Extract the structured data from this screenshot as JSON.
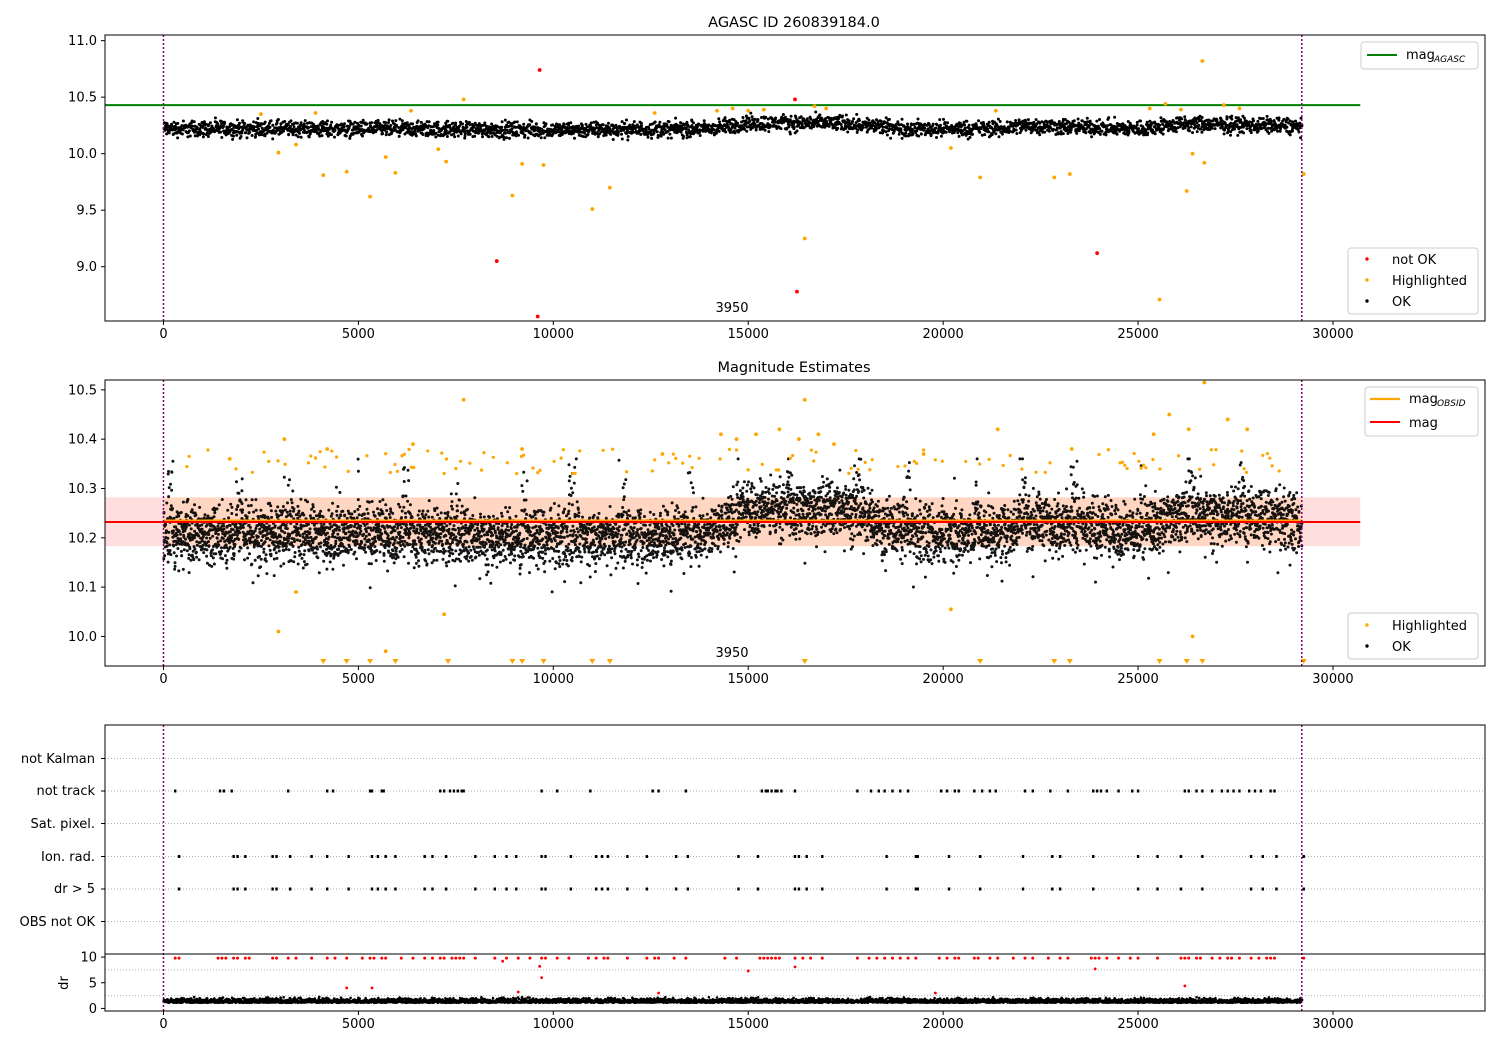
{
  "chart_data": [
    {
      "type": "scatter",
      "title": "AGASC ID 260839184.0",
      "xlim": [
        -1500,
        33900
      ],
      "ylim": [
        8.52,
        11.05
      ],
      "xticks": [
        0,
        5000,
        10000,
        15000,
        20000,
        25000,
        30000
      ],
      "yticks": [
        9.0,
        9.5,
        10.0,
        10.5,
        11.0
      ],
      "ytick_labels": [
        "9.0",
        "9.5",
        "10.0",
        "10.5",
        "11.0"
      ],
      "annotation": {
        "text": "3950",
        "x": 14570,
        "y": 8.63
      },
      "vlines": [
        0,
        29200
      ],
      "hlines": [
        {
          "name": "mag_AGASC",
          "y": 10.43,
          "x_end": 30700,
          "color": "#008000"
        }
      ],
      "ok_band": {
        "x_start": 0,
        "x_end": 29200,
        "baseline_segments": [
          [
            0,
            10.22
          ],
          [
            5000,
            10.22
          ],
          [
            10000,
            10.21
          ],
          [
            14000,
            10.22
          ],
          [
            15000,
            10.27
          ],
          [
            17500,
            10.27
          ],
          [
            19000,
            10.22
          ],
          [
            21500,
            10.22
          ],
          [
            22000,
            10.25
          ],
          [
            25000,
            10.22
          ],
          [
            26000,
            10.26
          ],
          [
            28500,
            10.25
          ],
          [
            29200,
            10.24
          ]
        ],
        "half_width": 0.06
      },
      "series": [
        {
          "name": "not OK",
          "color": "#ff0000",
          "x": [
            9650,
            8550,
            9600,
            16200,
            16250,
            23950
          ],
          "y": [
            10.74,
            9.05,
            8.56,
            10.48,
            8.78,
            9.12
          ]
        },
        {
          "name": "Highlighted",
          "color": "#ffa500",
          "x": [
            2950,
            3400,
            4100,
            4700,
            5300,
            5700,
            5950,
            7050,
            7250,
            7700,
            8950,
            9200,
            9750,
            11000,
            11450,
            16450,
            20200,
            20950,
            22850,
            23250,
            25550,
            26250,
            26400,
            26700,
            26650,
            29250,
            14200,
            14600,
            15000,
            15400,
            16700,
            17000,
            21350,
            25300,
            25700,
            26100,
            27200,
            27600,
            12600,
            6350,
            3900,
            2500
          ],
          "y": [
            10.01,
            10.08,
            9.81,
            9.84,
            9.62,
            9.97,
            9.83,
            10.04,
            9.93,
            10.48,
            9.63,
            9.91,
            9.9,
            9.51,
            9.7,
            9.25,
            10.05,
            9.79,
            9.79,
            9.82,
            8.71,
            9.67,
            10.0,
            9.92,
            10.82,
            9.82,
            10.38,
            10.4,
            10.38,
            10.39,
            10.42,
            10.4,
            10.38,
            10.4,
            10.44,
            10.39,
            10.43,
            10.4,
            10.36,
            10.38,
            10.36,
            10.35
          ]
        },
        {
          "name": "OK",
          "color": "#000000",
          "x": [],
          "y": []
        }
      ],
      "legend_top": [
        {
          "label": "mag",
          "sub": "AGASC",
          "color": "#008000"
        }
      ],
      "legend_bottom": [
        {
          "label": "not OK",
          "color": "#ff0000"
        },
        {
          "label": "Highlighted",
          "color": "#ffa500"
        },
        {
          "label": "OK",
          "color": "#000000"
        }
      ],
      "legend_placement": "top-right / lower-right"
    },
    {
      "type": "scatter",
      "title": "Magnitude Estimates",
      "xlim": [
        -1500,
        33900
      ],
      "ylim": [
        9.94,
        10.52
      ],
      "xticks": [
        0,
        5000,
        10000,
        15000,
        20000,
        25000,
        30000
      ],
      "yticks": [
        10.0,
        10.1,
        10.2,
        10.3,
        10.4,
        10.5
      ],
      "ytick_labels": [
        "10.0",
        "10.1",
        "10.2",
        "10.3",
        "10.4",
        "10.5"
      ],
      "annotation": {
        "text": "3950",
        "x": 14570,
        "y": 9.96
      },
      "vlines": [
        0,
        29200
      ],
      "hlines": [
        {
          "name": "mag_OBSID",
          "y": 10.235,
          "x_start": 0,
          "x_end": 29200,
          "color": "#ffa500"
        },
        {
          "name": "mag",
          "y": 10.232,
          "x_start": -1500,
          "x_end": 30700,
          "color": "#ff0000"
        }
      ],
      "mag_band": {
        "y_low": 10.183,
        "y_high": 10.282,
        "x_start": -1500,
        "x_end": 30700
      },
      "series": [
        {
          "name": "Highlighted",
          "color": "#ffa500",
          "x": [
            2950,
            3400,
            5700,
            7200,
            7700,
            16450,
            20200,
            26400,
            26700,
            14300,
            14700,
            15200,
            15800,
            16300,
            16800,
            17200,
            21400,
            25400,
            25800,
            26300,
            27300,
            27800,
            12800,
            6400,
            4200,
            3100,
            1700,
            19500,
            23300,
            9200
          ],
          "y": [
            10.01,
            10.09,
            9.97,
            10.045,
            10.48,
            10.48,
            10.055,
            10.0,
            10.515,
            10.41,
            10.4,
            10.41,
            10.42,
            10.4,
            10.41,
            10.39,
            10.42,
            10.41,
            10.45,
            10.42,
            10.44,
            10.42,
            10.37,
            10.39,
            10.38,
            10.4,
            10.36,
            10.37,
            10.38,
            10.38
          ]
        },
        {
          "name": "OK",
          "color": "#000000",
          "x": [],
          "y": []
        }
      ],
      "low_markers_x": [
        4100,
        4700,
        5300,
        5950,
        7300,
        8950,
        9200,
        9750,
        11000,
        11450,
        16450,
        20950,
        22850,
        23250,
        25550,
        26250,
        26650,
        29250
      ],
      "legend_top": [
        {
          "label": "mag",
          "sub": "OBSID",
          "color": "#ffa500"
        },
        {
          "label": "mag",
          "sub": "",
          "color": "#ff0000"
        }
      ],
      "legend_bottom": [
        {
          "label": "Highlighted",
          "color": "#ffa500"
        },
        {
          "label": "OK",
          "color": "#000000"
        }
      ]
    },
    {
      "type": "scatter",
      "title": "",
      "xlim": [
        -1500,
        33900
      ],
      "categories": [
        "not Kalman",
        "not track",
        "Sat. pixel.",
        "Ion. rad.",
        "dr > 5",
        "OBS not OK"
      ],
      "vlines": [
        0,
        29200
      ],
      "flags": {
        "not track": [
          300,
          1450,
          1550,
          1750,
          3200,
          4200,
          4350,
          5300,
          5350,
          5600,
          5650,
          7100,
          7200,
          7350,
          7450,
          7550,
          7650,
          7700,
          9700,
          10100,
          10950,
          12550,
          12700,
          13400,
          15350,
          15450,
          15500,
          15600,
          15700,
          15750,
          15850,
          16200,
          17800,
          18150,
          18350,
          18500,
          18700,
          18900,
          19100,
          19950,
          20100,
          20300,
          20400,
          20800,
          21000,
          21200,
          21350,
          22100,
          22300,
          22750,
          23200,
          23850,
          23950,
          24050,
          24200,
          24500,
          24850,
          25000,
          26200,
          26300,
          26500,
          26650,
          26900,
          27150,
          27300,
          27450,
          27600,
          27850,
          28000,
          28150,
          28400,
          28500
        ],
        "Ion. rad.": [
          400,
          1800,
          1900,
          2100,
          2800,
          2900,
          3250,
          3800,
          4200,
          4750,
          5350,
          5500,
          5700,
          5950,
          6700,
          6900,
          7250,
          8000,
          8500,
          8800,
          9050,
          9700,
          9800,
          10450,
          11100,
          11250,
          11400,
          11900,
          12400,
          13150,
          13450,
          14750,
          15250,
          16200,
          16300,
          16500,
          16900,
          18550,
          19300,
          19350,
          20150,
          20950,
          22050,
          22800,
          23000,
          23850,
          25000,
          25500,
          26100,
          26650,
          27900,
          28200,
          28550,
          29250
        ],
        "dr > 5": [
          400,
          1800,
          1900,
          2100,
          2800,
          2900,
          3250,
          3800,
          4200,
          4750,
          5350,
          5500,
          5700,
          5950,
          6700,
          6900,
          7250,
          8000,
          8500,
          8800,
          9050,
          9700,
          9800,
          10450,
          11100,
          11250,
          11400,
          11900,
          12400,
          13150,
          13450,
          14750,
          15250,
          16200,
          16300,
          16500,
          16900,
          18550,
          19300,
          19350,
          20150,
          20950,
          22050,
          22800,
          23000,
          23850,
          25000,
          25500,
          26100,
          26650,
          27900,
          28200,
          28550,
          29250
        ]
      },
      "dr_panel": {
        "ylabel": "dr",
        "ylim": [
          -0.5,
          10.6
        ],
        "yticks": [
          0,
          5,
          10
        ],
        "ytick_labels": [
          "0",
          "5",
          "10"
        ],
        "baseline": 1.3,
        "outliers_x": [
          9100,
          9650,
          9700,
          15000,
          16200,
          23900,
          26200,
          12700,
          4700,
          5350,
          8700,
          19800
        ],
        "outliers_y": [
          3.2,
          8.2,
          6.0,
          7.3,
          8.1,
          7.7,
          4.4,
          3.0,
          4.0,
          4.0,
          9.2,
          3.0
        ],
        "top_cluster_y": 9.8,
        "top_cluster_x": [
          300,
          400,
          1400,
          1500,
          1600,
          1800,
          1900,
          2100,
          2200,
          2800,
          2900,
          3200,
          3400,
          3800,
          4200,
          4400,
          4700,
          5100,
          5300,
          5400,
          5600,
          5700,
          6100,
          6400,
          6700,
          6900,
          7100,
          7200,
          7400,
          7500,
          7600,
          7700,
          8000,
          8500,
          8800,
          9100,
          9400,
          9700,
          9800,
          10100,
          10400,
          10900,
          11100,
          11300,
          11400,
          11900,
          12400,
          12600,
          12700,
          13100,
          13400,
          14400,
          14700,
          15300,
          15400,
          15500,
          15600,
          15700,
          15800,
          16200,
          16400,
          16600,
          16900,
          17800,
          18100,
          18300,
          18500,
          18700,
          18900,
          19100,
          19300,
          19900,
          20100,
          20300,
          20400,
          20800,
          20900,
          21200,
          21400,
          21800,
          22100,
          22300,
          22700,
          23000,
          23200,
          23800,
          23900,
          24000,
          24200,
          24500,
          24800,
          25000,
          25500,
          26100,
          26200,
          26300,
          26500,
          26600,
          26900,
          27100,
          27300,
          27400,
          27600,
          27900,
          28100,
          28300,
          28400,
          28500,
          29250
        ]
      },
      "xticks": [
        0,
        5000,
        10000,
        15000,
        20000,
        25000,
        30000
      ]
    }
  ]
}
